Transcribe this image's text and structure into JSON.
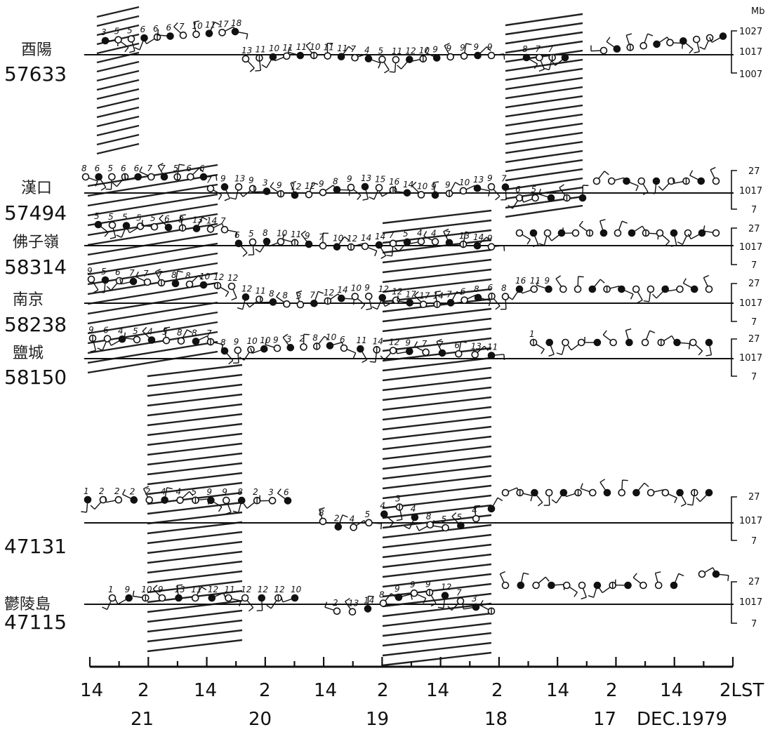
{
  "pressure_unit": "Mb",
  "stations": [
    {
      "name": "酉陽",
      "id": "57633",
      "scale": [
        "1027",
        "1017",
        "1007"
      ]
    },
    {
      "name": "漢口",
      "id": "57494",
      "scale": [
        "27",
        "1017",
        "7"
      ]
    },
    {
      "name": "佛子嶺",
      "id": "58314",
      "scale": [
        "27",
        "1017",
        "7"
      ]
    },
    {
      "name": "南京",
      "id": "58238",
      "scale": [
        "27",
        "1017",
        "7"
      ]
    },
    {
      "name": "鹽城",
      "id": "58150",
      "scale": [
        "27",
        "1017",
        "7"
      ]
    },
    {
      "name": "",
      "id": "47131",
      "scale": [
        "27",
        "1017",
        "7"
      ]
    },
    {
      "name": "鬱陵島",
      "id": "47115",
      "scale": [
        "27",
        "1017",
        "7"
      ]
    }
  ],
  "time_axis": {
    "hour_labels": [
      "14",
      "2",
      "14",
      "2",
      "14",
      "2",
      "14",
      "2",
      "14",
      "2",
      "14",
      "2LST"
    ],
    "date_labels": [
      "21",
      "20",
      "19",
      "18",
      "17"
    ],
    "caption": "DEC.1979"
  },
  "plot_numbers": {
    "s0": [
      "3",
      "5",
      "5",
      "6",
      "6",
      "6",
      "7",
      "10",
      "11",
      "17",
      "18",
      "13",
      "11",
      "10",
      "11",
      "11",
      "10",
      "11",
      "11",
      "7",
      "4",
      "5",
      "11",
      "12",
      "10",
      "9",
      "9",
      "9",
      "9",
      "9",
      "8",
      "7",
      "7"
    ],
    "s1": [
      "8",
      "6",
      "5",
      "6",
      "6",
      "7",
      "7",
      "5",
      "6",
      "6",
      "7",
      "9",
      "13",
      "9",
      "3",
      "9",
      "12",
      "12",
      "9",
      "8",
      "9",
      "13",
      "15",
      "16",
      "14",
      "10",
      "9",
      "9",
      "10",
      "13",
      "9",
      "7",
      "6",
      "5"
    ],
    "s2": [
      "5",
      "5",
      "5",
      "5",
      "5",
      "6",
      "8",
      "13",
      "14",
      "7",
      "6",
      "5",
      "8",
      "10",
      "11",
      "9",
      "7",
      "10",
      "12",
      "14",
      "14",
      "7",
      "5",
      "4",
      "4",
      "7",
      "13",
      "14",
      "9"
    ],
    "s3": [
      "9",
      "5",
      "6",
      "7",
      "7",
      "7",
      "8",
      "8",
      "10",
      "12",
      "12",
      "12",
      "11",
      "8",
      "8",
      "3",
      "7",
      "12",
      "14",
      "10",
      "9",
      "12",
      "12",
      "17",
      "17",
      "14",
      "7",
      "6",
      "8",
      "6",
      "8",
      "16",
      "11",
      "9"
    ],
    "s4": [
      "9",
      "6",
      "4",
      "5",
      "4",
      "5",
      "8",
      "8",
      "7",
      "8",
      "9",
      "10",
      "10",
      "9",
      "3",
      "2",
      "8",
      "10",
      "6",
      "11",
      "14",
      "12",
      "9",
      "7",
      "7",
      "6",
      "13",
      "11",
      "1"
    ],
    "s5": [
      "1",
      "2",
      "2",
      "2",
      "2",
      "4",
      "4",
      "5",
      "9",
      "9",
      "8",
      "2",
      "3",
      "6",
      "8",
      "2",
      "4",
      "5",
      "4",
      "3",
      "4",
      "8",
      "5",
      "5",
      "4"
    ],
    "s6": [
      "1",
      "9",
      "10",
      "9",
      "13",
      "11",
      "12",
      "11",
      "12",
      "12",
      "12",
      "10",
      "2",
      "13",
      "14",
      "8",
      "9",
      "9",
      "9",
      "12",
      "7",
      "3"
    ]
  }
}
